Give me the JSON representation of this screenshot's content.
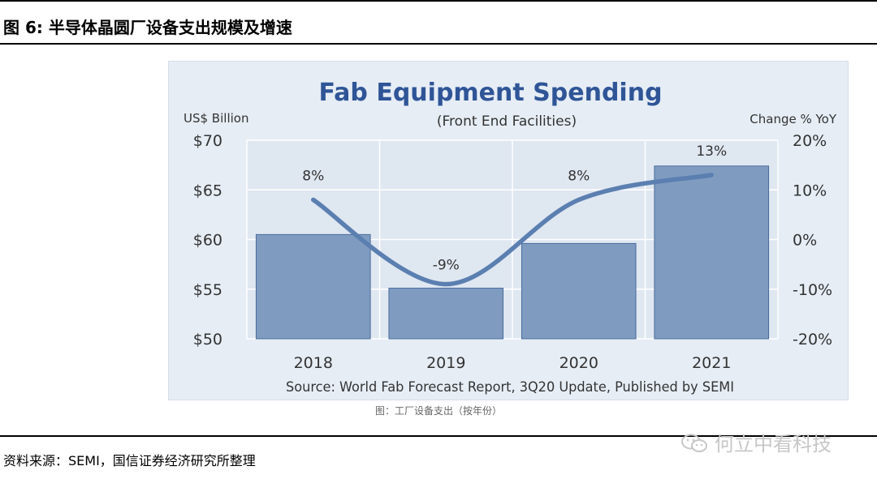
{
  "figure_title": "图 6:  半导体晶圆厂设备支出规模及增速",
  "caption": "图：工厂设备支出（按年份）",
  "source_note": "资料来源：SEMI，国信证券经济研究所整理",
  "watermark": "何立中看科技",
  "chart_data": {
    "type": "bar+line",
    "title": "Fab Equipment Spending",
    "subtitle": "(Front End Facilities)",
    "y_left_label": "US$ Billion",
    "y_right_label": "Change % YoY",
    "categories": [
      "2018",
      "2019",
      "2020",
      "2021"
    ],
    "series": [
      {
        "name": "Spending",
        "kind": "bar",
        "axis": "left",
        "values": [
          60.5,
          55.1,
          59.6,
          67.4
        ]
      },
      {
        "name": "Change % YoY",
        "kind": "line",
        "axis": "right",
        "values": [
          8,
          -9,
          8,
          13
        ],
        "labels": [
          "8%",
          "-9%",
          "8%",
          "13%"
        ]
      }
    ],
    "y_left_ticks": [
      "$70",
      "$65",
      "$60",
      "$55",
      "$50"
    ],
    "y_left_tick_values": [
      70,
      65,
      60,
      55,
      50
    ],
    "y_right_ticks": [
      "20%",
      "10%",
      "0%",
      "-10%",
      "-20%"
    ],
    "y_right_tick_values": [
      20,
      10,
      0,
      -10,
      -20
    ],
    "ylim_left": [
      50,
      70
    ],
    "ylim_right": [
      -20,
      20
    ],
    "source": "Source: World Fab Forecast Report, 3Q20 Update, Published by SEMI",
    "colors": {
      "bar": "#7f9cc0",
      "bar_edge": "#4a6c9c",
      "line": "#5b7fb0",
      "title": "#2f5597",
      "text": "#333333",
      "grid": "#ffffff"
    }
  }
}
